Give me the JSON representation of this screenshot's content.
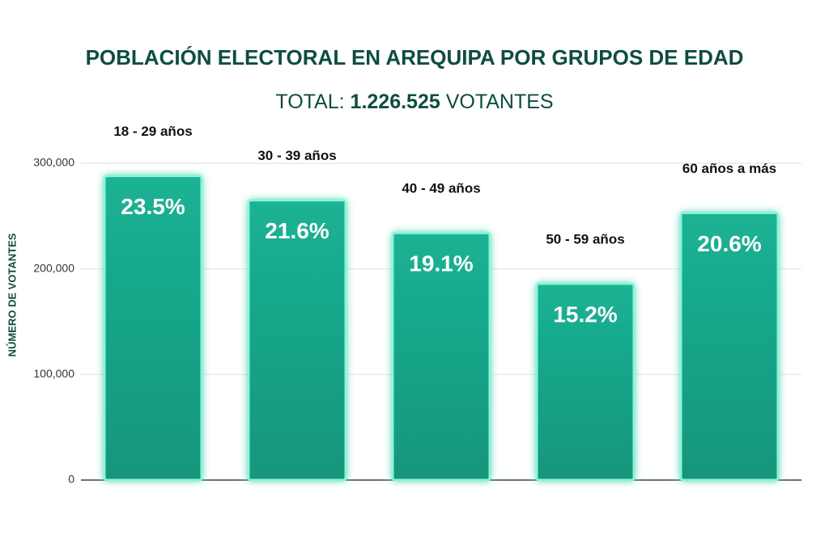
{
  "chart_data": {
    "type": "bar",
    "title": "POBLACIÓN ELECTORAL EN AREQUIPA POR GRUPOS DE EDAD",
    "subtitle_parts": [
      "TOTAL:",
      "1.226.525",
      "VOTANTES"
    ],
    "y_label": "NÚMERO DE VOTANTES",
    "categories": [
      "18 - 29 años",
      "30 - 39 años",
      "40 - 49 años",
      "50 - 59 años",
      "60 años a más"
    ],
    "values": [
      288000,
      265000,
      234000,
      186000,
      253000
    ],
    "value_labels": [
      "23.5%",
      "21.6%",
      "19.1%",
      "15.2%",
      "20.6%"
    ],
    "color": "#17a488",
    "ylim": [
      0,
      300000
    ],
    "yticks": [
      0,
      {
        "value": 100000,
        "label": "100,000"
      },
      {
        "value": 200000,
        "label": "200,000"
      },
      {
        "value": 300000,
        "label": "300,000"
      }
    ],
    "grid": true
  }
}
